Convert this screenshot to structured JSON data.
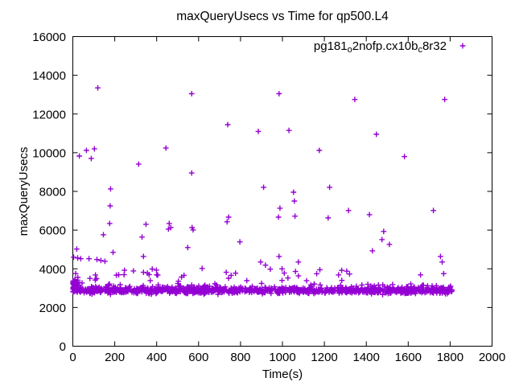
{
  "window": {
    "background": "#ffffff",
    "foreground": "#000000"
  },
  "chart_data": {
    "type": "scatter",
    "title": "maxQueryUsecs vs Time for qp500.L4",
    "xlabel": "Time(s)",
    "ylabel": "maxQueryUsecs",
    "xlim": [
      0,
      2000
    ],
    "ylim": [
      0,
      16000
    ],
    "x_ticks": [
      0,
      200,
      400,
      600,
      800,
      1000,
      1200,
      1400,
      1600,
      1800,
      2000
    ],
    "y_ticks": [
      0,
      2000,
      4000,
      6000,
      8000,
      10000,
      12000,
      14000,
      16000
    ],
    "grid": false,
    "axis_color": "#000000",
    "marker_color": "#9400D3",
    "legend": {
      "position": "top-right-inside",
      "marker": "plus",
      "label_plain": "pg181_o2nofp.cx10b_c8r32",
      "label_segments": [
        {
          "text": "pg181",
          "sub": false
        },
        {
          "text": "o",
          "sub": true
        },
        {
          "text": "2nofp.cx10b",
          "sub": false
        },
        {
          "text": "c",
          "sub": true
        },
        {
          "text": "8r32",
          "sub": false
        }
      ]
    },
    "series": [
      {
        "name": "pg181_o2nofp.cx10b_c8r32",
        "color": "#9400D3",
        "marker": "plus",
        "outlier_points": [
          [
            119,
            13350
          ],
          [
            567,
            13050
          ],
          [
            984,
            13050
          ],
          [
            1345,
            12750
          ],
          [
            1774,
            12750
          ],
          [
            739,
            11450
          ],
          [
            885,
            11100
          ],
          [
            1031,
            11150
          ],
          [
            1448,
            10950
          ],
          [
            444,
            10240
          ],
          [
            1176,
            10120
          ],
          [
            65,
            10120
          ],
          [
            103,
            10200
          ],
          [
            31,
            9830
          ],
          [
            88,
            9700
          ],
          [
            1582,
            9800
          ],
          [
            314,
            9410
          ],
          [
            567,
            8950
          ],
          [
            910,
            8210
          ],
          [
            180,
            8130
          ],
          [
            1225,
            8210
          ],
          [
            1053,
            7960
          ],
          [
            1057,
            7500
          ],
          [
            178,
            7250
          ],
          [
            988,
            7130
          ],
          [
            981,
            6670
          ],
          [
            1060,
            6720
          ],
          [
            1315,
            7010
          ],
          [
            1415,
            6800
          ],
          [
            1720,
            7010
          ],
          [
            1218,
            6630
          ],
          [
            176,
            6340
          ],
          [
            349,
            6300
          ],
          [
            736,
            6430
          ],
          [
            743,
            6670
          ],
          [
            460,
            6340
          ],
          [
            456,
            6050
          ],
          [
            467,
            6130
          ],
          [
            569,
            6130
          ],
          [
            574,
            6010
          ],
          [
            146,
            5760
          ],
          [
            330,
            5640
          ],
          [
            548,
            5100
          ],
          [
            797,
            5390
          ],
          [
            1483,
            5930
          ],
          [
            1475,
            5510
          ],
          [
            1510,
            5260
          ],
          [
            1429,
            4930
          ],
          [
            19,
            5020
          ],
          [
            4,
            4600
          ],
          [
            23,
            4560
          ],
          [
            192,
            4850
          ],
          [
            337,
            4640
          ],
          [
            38,
            4520
          ],
          [
            77,
            4520
          ],
          [
            115,
            4480
          ],
          [
            134,
            4430
          ],
          [
            153,
            4390
          ],
          [
            896,
            4350
          ],
          [
            919,
            4190
          ],
          [
            942,
            3980
          ],
          [
            1754,
            4640
          ],
          [
            1762,
            4350
          ],
          [
            617,
            4020
          ],
          [
            1076,
            4350
          ],
          [
            984,
            4640
          ],
          [
            379,
            3990
          ],
          [
            337,
            3820
          ],
          [
            364,
            3700
          ],
          [
            732,
            3820
          ],
          [
            755,
            3660
          ]
        ],
        "dense_band": {
          "description": "dense horizontal band of samples, one roughly every 1.5s, values mostly 2650-3400 usecs with occasional spikes toward 4300",
          "count": 1150,
          "t_min": 0,
          "t_max": 1810,
          "v_core_min": 2650,
          "v_core_max": 3100,
          "v_spike_max": 4300,
          "seed": 20240501,
          "start_cluster": {
            "count": 55,
            "t_min": 0,
            "t_max": 25,
            "v_min": 2900,
            "v_max": 3450
          }
        }
      }
    ]
  }
}
